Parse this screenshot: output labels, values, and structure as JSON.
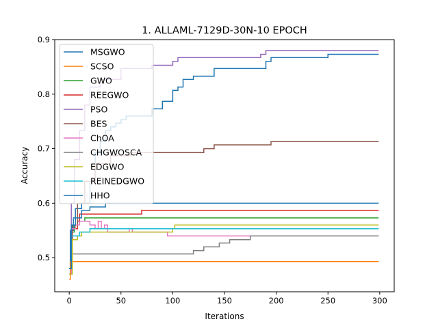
{
  "chart_data": {
    "type": "line",
    "title": "1.  ALLAML-7129D-30N-10 EPOCH",
    "xlabel": "Iterations",
    "ylabel": "Accuracy",
    "xlim": [
      -14,
      314
    ],
    "ylim": [
      0.4375,
      0.9
    ],
    "xticks": [
      0,
      50,
      100,
      150,
      200,
      250,
      300
    ],
    "yticks": [
      0.5,
      0.6,
      0.7,
      0.8,
      0.9
    ],
    "xtick_labels": [
      "0",
      "50",
      "100",
      "150",
      "200",
      "250",
      "300"
    ],
    "ytick_labels": [
      "0.5",
      "0.6",
      "0.7",
      "0.8",
      "0.9"
    ],
    "grid": false,
    "legend_position": "top-left",
    "series": [
      {
        "name": "MSGWO",
        "color": "#1f77b4",
        "points": [
          [
            0,
            0.48
          ],
          [
            1,
            0.55
          ],
          [
            4,
            0.573
          ],
          [
            6,
            0.59
          ],
          [
            12,
            0.6
          ],
          [
            20,
            0.64
          ],
          [
            25,
            0.693
          ],
          [
            30,
            0.713
          ],
          [
            35,
            0.733
          ],
          [
            40,
            0.74
          ],
          [
            45,
            0.747
          ],
          [
            50,
            0.753
          ],
          [
            55,
            0.76
          ],
          [
            80,
            0.773
          ],
          [
            90,
            0.787
          ],
          [
            100,
            0.807
          ],
          [
            105,
            0.813
          ],
          [
            110,
            0.827
          ],
          [
            120,
            0.833
          ],
          [
            140,
            0.847
          ],
          [
            190,
            0.86
          ],
          [
            195,
            0.867
          ],
          [
            250,
            0.873
          ],
          [
            299,
            0.873
          ]
        ]
      },
      {
        "name": "SCSO",
        "color": "#ff7f0e",
        "points": [
          [
            0,
            0.46
          ],
          [
            1,
            0.493
          ],
          [
            299,
            0.493
          ]
        ]
      },
      {
        "name": "GWO",
        "color": "#2ca02c",
        "points": [
          [
            0,
            0.48
          ],
          [
            2,
            0.547
          ],
          [
            5,
            0.56
          ],
          [
            10,
            0.567
          ],
          [
            15,
            0.573
          ],
          [
            299,
            0.573
          ]
        ]
      },
      {
        "name": "REEGWO",
        "color": "#d62728",
        "points": [
          [
            0,
            0.48
          ],
          [
            3,
            0.553
          ],
          [
            8,
            0.567
          ],
          [
            10,
            0.58
          ],
          [
            25,
            0.58
          ],
          [
            70,
            0.587
          ],
          [
            299,
            0.587
          ]
        ]
      },
      {
        "name": "PSO",
        "color": "#9467bd",
        "points": [
          [
            0,
            0.48
          ],
          [
            2,
            0.6
          ],
          [
            5,
            0.68
          ],
          [
            10,
            0.733
          ],
          [
            15,
            0.78
          ],
          [
            20,
            0.813
          ],
          [
            30,
            0.827
          ],
          [
            50,
            0.847
          ],
          [
            80,
            0.853
          ],
          [
            100,
            0.86
          ],
          [
            105,
            0.867
          ],
          [
            185,
            0.873
          ],
          [
            190,
            0.88
          ],
          [
            299,
            0.88
          ]
        ]
      },
      {
        "name": "BES",
        "color": "#8c564b",
        "points": [
          [
            0,
            0.48
          ],
          [
            3,
            0.56
          ],
          [
            8,
            0.6
          ],
          [
            15,
            0.64
          ],
          [
            25,
            0.673
          ],
          [
            40,
            0.687
          ],
          [
            60,
            0.693
          ],
          [
            130,
            0.7
          ],
          [
            140,
            0.707
          ],
          [
            195,
            0.713
          ],
          [
            299,
            0.713
          ]
        ]
      },
      {
        "name": "ChOA",
        "color": "#e377c2",
        "points": [
          [
            0,
            0.47
          ],
          [
            2,
            0.553
          ],
          [
            6,
            0.56
          ],
          [
            10,
            0.567
          ],
          [
            15,
            0.567
          ],
          [
            20,
            0.56
          ],
          [
            25,
            0.553
          ],
          [
            28,
            0.567
          ],
          [
            31,
            0.553
          ],
          [
            34,
            0.56
          ],
          [
            37,
            0.547
          ],
          [
            55,
            0.547
          ],
          [
            58,
            0.553
          ],
          [
            61,
            0.547
          ],
          [
            90,
            0.547
          ],
          [
            95,
            0.54
          ],
          [
            160,
            0.54
          ],
          [
            299,
            0.54
          ]
        ]
      },
      {
        "name": "CHGWOSCA",
        "color": "#7f7f7f",
        "points": [
          [
            0,
            0.48
          ],
          [
            2,
            0.507
          ],
          [
            115,
            0.507
          ],
          [
            120,
            0.513
          ],
          [
            130,
            0.52
          ],
          [
            145,
            0.527
          ],
          [
            155,
            0.533
          ],
          [
            175,
            0.54
          ],
          [
            299,
            0.54
          ]
        ]
      },
      {
        "name": "EDGWO",
        "color": "#bcbd22",
        "points": [
          [
            0,
            0.47
          ],
          [
            3,
            0.533
          ],
          [
            8,
            0.54
          ],
          [
            12,
            0.547
          ],
          [
            100,
            0.553
          ],
          [
            102,
            0.56
          ],
          [
            299,
            0.56
          ]
        ]
      },
      {
        "name": "REINEDGWO",
        "color": "#17becf",
        "points": [
          [
            0,
            0.48
          ],
          [
            2,
            0.54
          ],
          [
            10,
            0.547
          ],
          [
            20,
            0.553
          ],
          [
            299,
            0.553
          ]
        ]
      },
      {
        "name": "HHO",
        "color": "#1f77b4",
        "points": [
          [
            0,
            0.48
          ],
          [
            2,
            0.56
          ],
          [
            6,
            0.573
          ],
          [
            12,
            0.587
          ],
          [
            20,
            0.593
          ],
          [
            35,
            0.6
          ],
          [
            299,
            0.6
          ]
        ]
      }
    ]
  }
}
